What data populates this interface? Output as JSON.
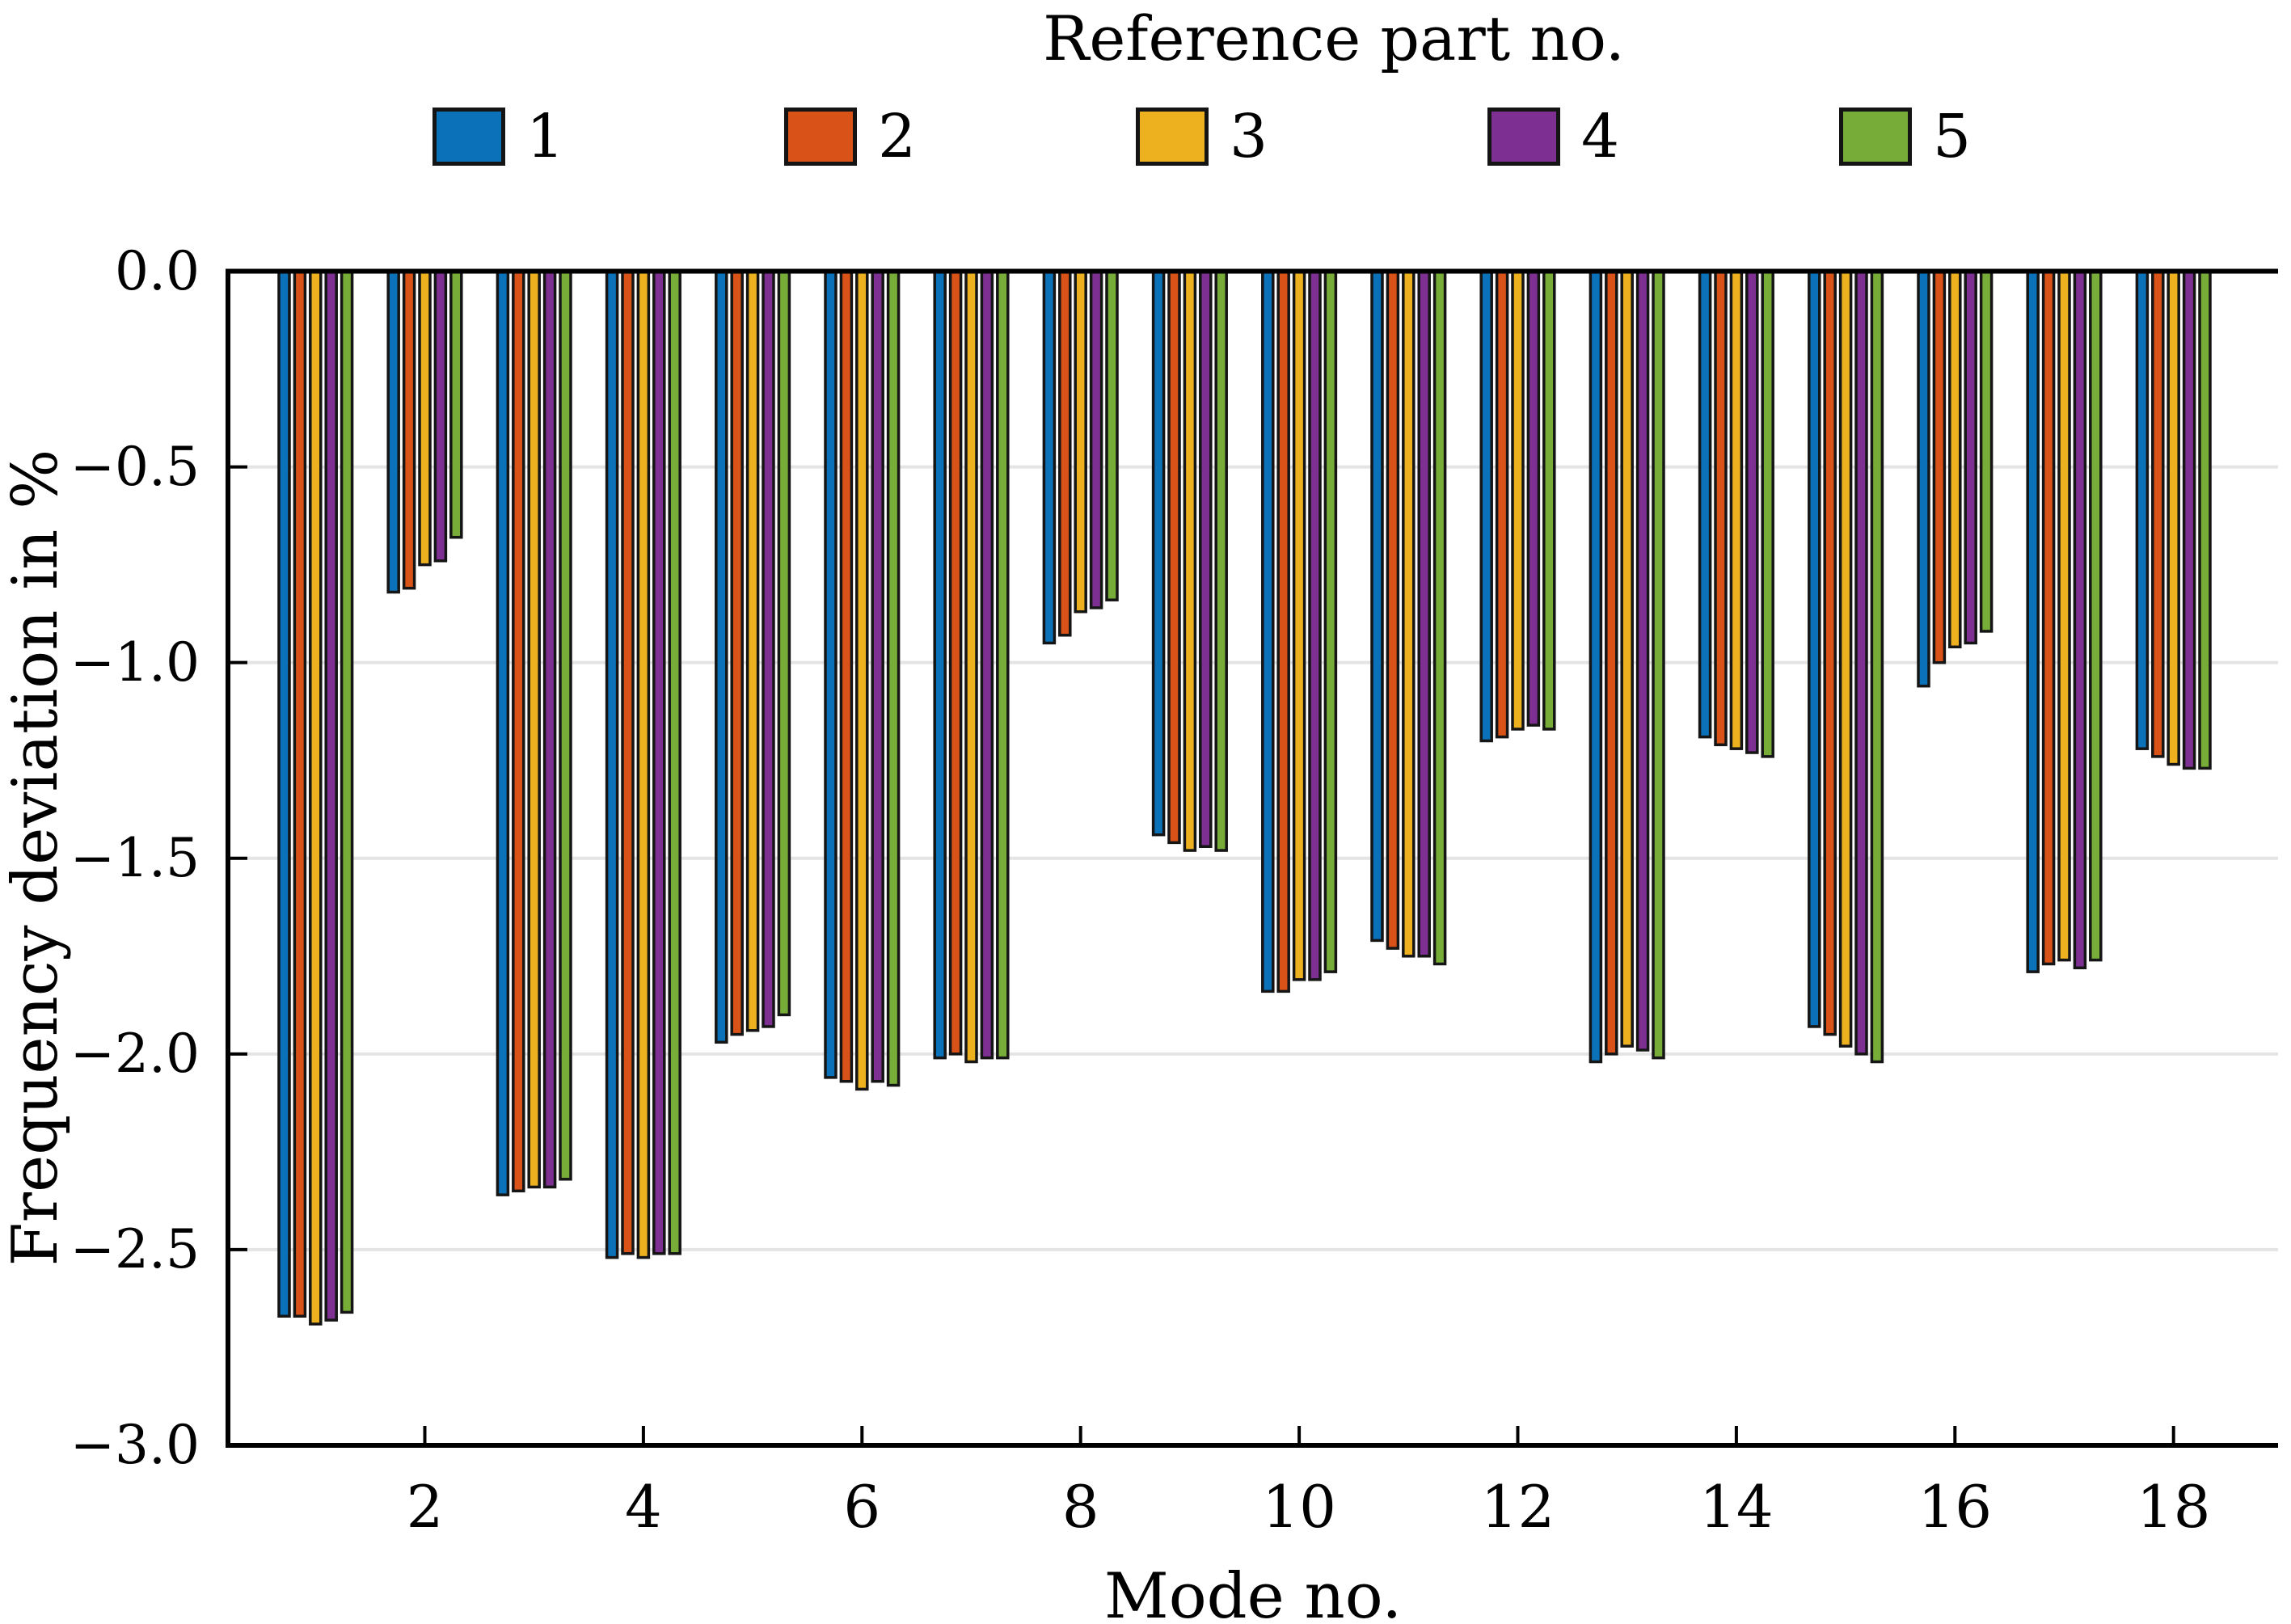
{
  "legend": {
    "title": "Reference part no.",
    "entries": [
      "1",
      "2",
      "3",
      "4",
      "5"
    ]
  },
  "axes": {
    "xlabel": "Mode no.",
    "ylabel": "Frequency deviation in %",
    "yticks": [
      {
        "v": 0,
        "label": "0.0"
      },
      {
        "v": -0.5,
        "label": "−0.5"
      },
      {
        "v": -1,
        "label": "−1.0"
      },
      {
        "v": -1.5,
        "label": "−1.5"
      },
      {
        "v": -2,
        "label": "−2.0"
      },
      {
        "v": -2.5,
        "label": "−2.5"
      },
      {
        "v": -3,
        "label": "−3.0"
      }
    ],
    "xticks": [
      {
        "v": 2,
        "label": "2"
      },
      {
        "v": 4,
        "label": "4"
      },
      {
        "v": 6,
        "label": "6"
      },
      {
        "v": 8,
        "label": "8"
      },
      {
        "v": 10,
        "label": "10"
      },
      {
        "v": 12,
        "label": "12"
      },
      {
        "v": 14,
        "label": "14"
      },
      {
        "v": 16,
        "label": "16"
      },
      {
        "v": 18,
        "label": "18"
      }
    ]
  },
  "colors": {
    "background": "#ffffff",
    "axis": "#000000",
    "grid": "#e4e4e4",
    "bar_edge": "#151515"
  },
  "chart_data": {
    "type": "bar",
    "title": "Reference part no.",
    "xlabel": "Mode no.",
    "ylabel": "Frequency deviation in %",
    "categories": [
      1,
      2,
      3,
      4,
      5,
      6,
      7,
      8,
      9,
      10,
      11,
      12,
      13,
      14,
      15,
      16,
      17,
      18
    ],
    "ylim": [
      -3.0,
      0.0
    ],
    "grid": true,
    "legend_position": "top",
    "legend_title": "Reference part no.",
    "series": [
      {
        "name": "1",
        "color": "#0b72b9",
        "values": [
          -2.67,
          -0.82,
          -2.36,
          -2.52,
          -1.97,
          -2.06,
          -2.01,
          -0.95,
          -1.44,
          -1.84,
          -1.71,
          -1.2,
          -2.02,
          -1.19,
          -1.93,
          -1.06,
          -1.79,
          -1.22
        ]
      },
      {
        "name": "2",
        "color": "#d95319",
        "values": [
          -2.67,
          -0.81,
          -2.35,
          -2.51,
          -1.95,
          -2.07,
          -2.0,
          -0.93,
          -1.46,
          -1.84,
          -1.73,
          -1.19,
          -2.0,
          -1.21,
          -1.95,
          -1.0,
          -1.77,
          -1.24
        ]
      },
      {
        "name": "3",
        "color": "#edb120",
        "values": [
          -2.69,
          -0.75,
          -2.34,
          -2.52,
          -1.94,
          -2.09,
          -2.02,
          -0.87,
          -1.48,
          -1.81,
          -1.75,
          -1.17,
          -1.98,
          -1.22,
          -1.98,
          -0.96,
          -1.76,
          -1.26
        ]
      },
      {
        "name": "4",
        "color": "#7d3092",
        "values": [
          -2.68,
          -0.74,
          -2.34,
          -2.51,
          -1.93,
          -2.07,
          -2.01,
          -0.86,
          -1.47,
          -1.81,
          -1.75,
          -1.16,
          -1.99,
          -1.23,
          -2.0,
          -0.95,
          -1.78,
          -1.27
        ]
      },
      {
        "name": "5",
        "color": "#77ac38",
        "values": [
          -2.66,
          -0.68,
          -2.32,
          -2.51,
          -1.9,
          -2.08,
          -2.01,
          -0.84,
          -1.48,
          -1.79,
          -1.77,
          -1.17,
          -2.01,
          -1.24,
          -2.02,
          -0.92,
          -1.76,
          -1.27
        ]
      }
    ]
  }
}
